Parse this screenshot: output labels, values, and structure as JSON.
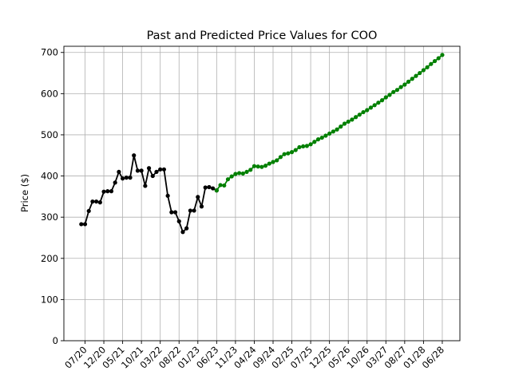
{
  "chart_data": {
    "type": "line",
    "title": "Past and Predicted Price Values for COO",
    "xlabel": "",
    "ylabel": "Price ($)",
    "ylim": [
      0,
      715
    ],
    "yticks": [
      0,
      100,
      200,
      300,
      400,
      500,
      600,
      700
    ],
    "xticks": [
      "07/20",
      "12/20",
      "05/21",
      "10/21",
      "03/22",
      "08/22",
      "01/23",
      "06/23",
      "11/23",
      "04/24",
      "09/24",
      "02/25",
      "07/25",
      "12/25",
      "05/26",
      "10/26",
      "03/27",
      "08/27",
      "01/28",
      "06/28"
    ],
    "grid": true,
    "x_unit": "month",
    "series": [
      {
        "color": "#000000",
        "marker": "circle",
        "x": [
          "06/20",
          "07/20",
          "08/20",
          "09/20",
          "10/20",
          "11/20",
          "12/20",
          "01/21",
          "02/21",
          "03/21",
          "04/21",
          "05/21",
          "06/21",
          "07/21",
          "08/21",
          "09/21",
          "10/21",
          "11/21",
          "12/21",
          "01/22",
          "02/22",
          "03/22",
          "04/22",
          "05/22",
          "06/22",
          "07/22",
          "08/22",
          "09/22",
          "10/22",
          "11/22",
          "12/22",
          "01/23",
          "02/23",
          "03/23",
          "04/23",
          "05/23",
          "06/23"
        ],
        "values": [
          283,
          283,
          315,
          338,
          338,
          336,
          362,
          363,
          363,
          384,
          410,
          394,
          396,
          396,
          450,
          413,
          413,
          376,
          419,
          400,
          410,
          416,
          416,
          352,
          312,
          312,
          290,
          264,
          273,
          316,
          316,
          349,
          326,
          372,
          373,
          370,
          365
        ]
      },
      {
        "color": "#008000",
        "marker": "circle",
        "x": [
          "06/23",
          "07/23",
          "08/23",
          "09/23",
          "10/23",
          "11/23",
          "12/23",
          "01/24",
          "02/24",
          "03/24",
          "04/24",
          "05/24",
          "06/24",
          "07/24",
          "08/24",
          "09/24",
          "10/24",
          "11/24",
          "12/24",
          "01/25",
          "02/25",
          "03/25",
          "04/25",
          "05/25",
          "06/25",
          "07/25",
          "08/25",
          "09/25",
          "10/25",
          "11/25",
          "12/25",
          "01/26",
          "02/26",
          "03/26",
          "04/26",
          "05/26",
          "06/26",
          "07/26",
          "08/26",
          "09/26",
          "10/26",
          "11/26",
          "12/26",
          "01/27",
          "02/27",
          "03/27",
          "04/27",
          "05/27",
          "06/27",
          "07/27",
          "08/27",
          "09/27",
          "10/27",
          "11/27",
          "12/27",
          "01/28",
          "02/28",
          "03/28",
          "04/28",
          "05/28",
          "06/28"
        ],
        "values": [
          365,
          378,
          377,
          392,
          399,
          405,
          407,
          406,
          410,
          415,
          424,
          423,
          422,
          425,
          430,
          434,
          438,
          446,
          453,
          455,
          458,
          463,
          470,
          472,
          473,
          477,
          483,
          489,
          493,
          498,
          503,
          508,
          513,
          520,
          527,
          532,
          537,
          543,
          549,
          555,
          560,
          566,
          572,
          578,
          584,
          591,
          597,
          604,
          609,
          616,
          622,
          629,
          636,
          643,
          650,
          657,
          664,
          672,
          679,
          686,
          694
        ]
      }
    ]
  }
}
